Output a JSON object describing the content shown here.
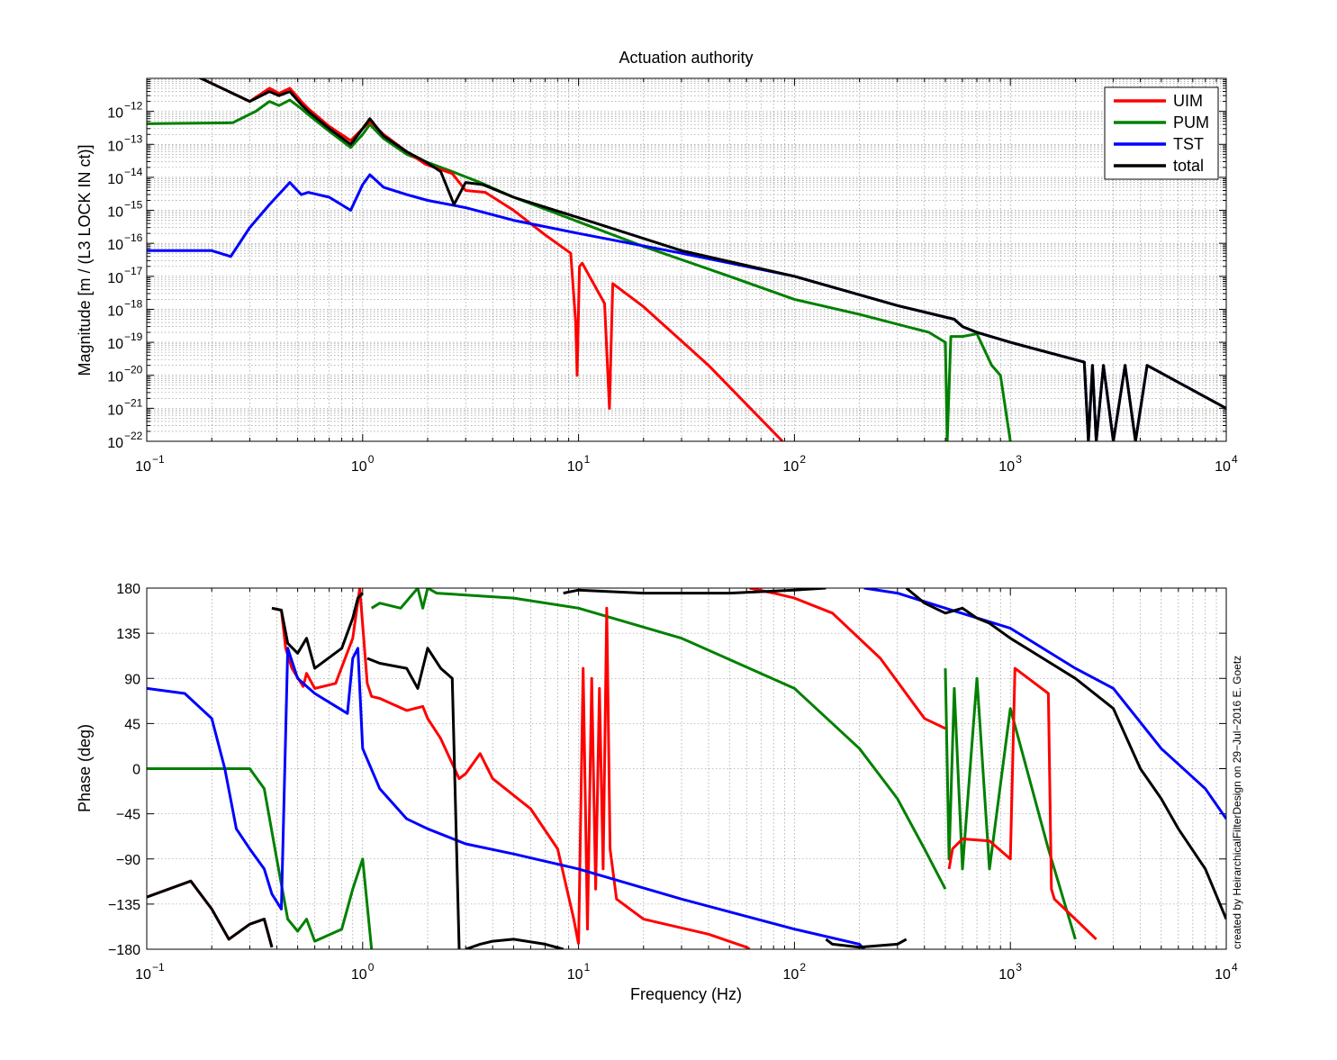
{
  "chart_data": [
    {
      "type": "line",
      "title": "Actuation authority",
      "xlabel": "",
      "ylabel": "Magnitude [m / (L3 LOCK IN ct)]",
      "xscale": "log",
      "yscale": "log",
      "xlim": [
        0.1,
        10000
      ],
      "ylim": [
        1e-22,
        1e-11
      ],
      "grid": "on (major and minor, dotted)",
      "legend_position": "top-right",
      "xtick_labels": [
        {
          "base": "10",
          "exp": "−1",
          "value": 0.1
        },
        {
          "base": "10",
          "exp": "0",
          "value": 1
        },
        {
          "base": "10",
          "exp": "1",
          "value": 10
        },
        {
          "base": "10",
          "exp": "2",
          "value": 100
        },
        {
          "base": "10",
          "exp": "3",
          "value": 1000
        },
        {
          "base": "10",
          "exp": "4",
          "value": 10000
        }
      ],
      "ytick_labels": [
        {
          "base": "10",
          "exp": "−12",
          "value": -12
        },
        {
          "base": "10",
          "exp": "−13",
          "value": -13
        },
        {
          "base": "10",
          "exp": "−14",
          "value": -14
        },
        {
          "base": "10",
          "exp": "−15",
          "value": -15
        },
        {
          "base": "10",
          "exp": "−16",
          "value": -16
        },
        {
          "base": "10",
          "exp": "−17",
          "value": -17
        },
        {
          "base": "10",
          "exp": "−18",
          "value": -18
        },
        {
          "base": "10",
          "exp": "−19",
          "value": -19
        },
        {
          "base": "10",
          "exp": "−20",
          "value": -20
        },
        {
          "base": "10",
          "exp": "−21",
          "value": -21
        },
        {
          "base": "10",
          "exp": "−22",
          "value": -22
        }
      ],
      "series": [
        {
          "name": "UIM",
          "color": "#ff0000",
          "x": [
            0.1,
            0.3,
            0.37,
            0.41,
            0.46,
            0.52,
            0.56,
            0.7,
            0.88,
            1.0,
            1.08,
            1.25,
            1.6,
            1.95,
            2.6,
            3.0,
            3.7,
            5,
            7,
            9.2,
            9.7,
            9.85,
            10.1,
            10.4,
            13.2,
            13.9,
            14.4,
            20,
            40,
            88
          ],
          "y": [
            6e-11,
            2e-12,
            5e-12,
            3.5e-12,
            5e-12,
            2e-12,
            1.2e-12,
            3.5e-13,
            1.3e-13,
            3e-13,
            5e-13,
            2e-13,
            6e-14,
            2.5e-14,
            1.3e-14,
            4e-15,
            3.5e-15,
            1e-15,
            1.8e-16,
            5e-17,
            4e-19,
            1e-20,
            2e-17,
            2.5e-17,
            1.5e-18,
            1e-21,
            6e-18,
            1.2e-18,
            2e-20,
            1e-22
          ]
        },
        {
          "name": "PUM",
          "color": "#008000",
          "x": [
            0.1,
            0.25,
            0.32,
            0.37,
            0.41,
            0.46,
            0.52,
            0.56,
            0.7,
            0.88,
            1.0,
            1.08,
            1.25,
            1.6,
            1.95,
            2.6,
            3.5,
            5,
            10,
            20,
            50,
            100,
            200,
            420,
            500,
            510,
            530,
            560,
            600,
            700,
            820,
            900,
            1000
          ],
          "y": [
            4.2e-13,
            4.5e-13,
            1e-12,
            2e-12,
            1.5e-12,
            2.2e-12,
            1.2e-12,
            8e-13,
            2.5e-13,
            8e-14,
            2e-13,
            4e-13,
            1.5e-13,
            5e-14,
            3e-14,
            1.5e-14,
            7e-15,
            2.5e-15,
            4.5e-16,
            8e-17,
            1e-17,
            2e-18,
            7e-19,
            2e-19,
            1e-19,
            1e-22,
            1.5e-19,
            1.5e-19,
            1.5e-19,
            1.8e-19,
            2e-20,
            1e-20,
            1e-22
          ]
        },
        {
          "name": "TST",
          "color": "#0000ff",
          "x": [
            0.1,
            0.2,
            0.245,
            0.3,
            0.37,
            0.46,
            0.52,
            0.56,
            0.7,
            0.88,
            1.0,
            1.08,
            1.25,
            1.6,
            2,
            3,
            5,
            10,
            30,
            100,
            300,
            550,
            600,
            700,
            1000,
            2200,
            2300,
            2400,
            2500,
            2700,
            3000,
            3400,
            3800,
            4300,
            10000
          ],
          "y": [
            6e-17,
            6e-17,
            4e-17,
            3e-16,
            1.5e-15,
            7e-15,
            3e-15,
            3.5e-15,
            2.5e-15,
            1e-15,
            6e-15,
            1.2e-14,
            5e-15,
            3e-15,
            2e-15,
            1.2e-15,
            5e-16,
            2e-16,
            5e-17,
            1e-17,
            1.3e-18,
            5e-19,
            3e-19,
            2e-19,
            1e-19,
            2.5e-20,
            1e-22,
            2e-20,
            1e-22,
            2e-20,
            1e-22,
            2e-20,
            1e-22,
            2e-20,
            1e-21
          ]
        },
        {
          "name": "total",
          "color": "#000000",
          "x": [
            0.1,
            0.3,
            0.37,
            0.41,
            0.46,
            0.52,
            0.56,
            0.7,
            0.88,
            1.0,
            1.08,
            1.25,
            1.6,
            1.95,
            2.3,
            2.65,
            3.0,
            3.6,
            5,
            10,
            30,
            100,
            300,
            550,
            600,
            700,
            1000,
            2200,
            2300,
            2400,
            2500,
            2700,
            3000,
            3400,
            3800,
            4300,
            10000
          ],
          "y": [
            6e-11,
            2e-12,
            4e-12,
            3e-12,
            4e-12,
            1.6e-12,
            1e-12,
            3e-13,
            1e-13,
            3e-13,
            6e-13,
            1.8e-13,
            6e-14,
            3e-14,
            1.5e-14,
            1.5e-15,
            7e-15,
            6e-15,
            2.5e-15,
            6e-16,
            6e-17,
            1e-17,
            1.3e-18,
            5e-19,
            3e-19,
            2e-19,
            1e-19,
            2.5e-20,
            1e-22,
            2e-20,
            1e-22,
            2e-20,
            1e-22,
            2e-20,
            1e-22,
            2e-20,
            1e-21
          ]
        }
      ]
    },
    {
      "type": "line",
      "title": "",
      "xlabel": "Frequency (Hz)",
      "ylabel": "Phase (deg)",
      "xscale": "log",
      "xlim": [
        0.1,
        10000
      ],
      "ylim": [
        -180,
        180
      ],
      "grid": "on (major and minor, dotted)",
      "xtick_labels": [
        {
          "base": "10",
          "exp": "−1",
          "value": 0.1
        },
        {
          "base": "10",
          "exp": "0",
          "value": 1
        },
        {
          "base": "10",
          "exp": "1",
          "value": 10
        },
        {
          "base": "10",
          "exp": "2",
          "value": 100
        },
        {
          "base": "10",
          "exp": "3",
          "value": 1000
        },
        {
          "base": "10",
          "exp": "4",
          "value": 10000
        }
      ],
      "ytick_labels": [
        "180",
        "135",
        "90",
        "45",
        "0",
        "−45",
        "−90",
        "−135",
        "−180"
      ],
      "ytick_values": [
        180,
        135,
        90,
        45,
        0,
        -45,
        -90,
        -135,
        -180
      ],
      "series": [
        {
          "name": "UIM",
          "color": "#ff0000",
          "lines": [
            {
              "x": [
                0.1,
                0.16,
                0.2,
                0.24,
                0.3,
                0.35,
                0.38
              ],
              "y": [
                -128,
                -112,
                -140,
                -170,
                -155,
                -150,
                -178
              ]
            },
            {
              "x": [
                0.38,
                0.42,
                0.44,
                0.47,
                0.53,
                0.55,
                0.6,
                0.75,
                0.9,
                0.97
              ],
              "y": [
                160,
                158,
                120,
                100,
                82,
                95,
                80,
                85,
                130,
                180
              ]
            },
            {
              "x": [
                0.97,
                1.05,
                1.1,
                1.2,
                1.6,
                1.9,
                2.0,
                2.3,
                2.8,
                3.0,
                3.5,
                4,
                6,
                8,
                9.5,
                10
              ],
              "y": [
                180,
                85,
                72,
                70,
                58,
                62,
                50,
                30,
                -10,
                -5,
                15,
                -10,
                -40,
                -80,
                -150,
                -175
              ]
            },
            {
              "x": [
                10,
                10.5,
                11,
                11.5,
                12,
                12.5,
                13,
                13.5,
                14,
                15,
                20,
                40,
                60,
                62
              ],
              "y": [
                -175,
                100,
                -160,
                90,
                -120,
                80,
                -100,
                160,
                -80,
                -130,
                -150,
                -165,
                -178,
                -180
              ]
            },
            {
              "x": [
                62,
                80,
                100,
                150,
                250,
                400,
                500
              ],
              "y": [
                180,
                175,
                170,
                155,
                110,
                50,
                40
              ]
            },
            {
              "x": [
                520,
                540,
                600,
                800,
                1000,
                1050,
                1500,
                1550,
                1600,
                2000,
                2500
              ],
              "y": [
                -100,
                -80,
                -70,
                -72,
                -90,
                100,
                75,
                -120,
                -130,
                -150,
                -170
              ]
            }
          ]
        },
        {
          "name": "PUM",
          "color": "#008000",
          "lines": [
            {
              "x": [
                0.1,
                0.2,
                0.3,
                0.35,
                0.4,
                0.45,
                0.5,
                0.55,
                0.6,
                0.8,
                0.9,
                1.0,
                1.1
              ],
              "y": [
                0,
                0,
                0,
                -20,
                -90,
                -150,
                -162,
                -150,
                -172,
                -160,
                -120,
                -90,
                -180
              ]
            },
            {
              "x": [
                1.1,
                1.2,
                1.5,
                1.8,
                1.9,
                2.0,
                2.2,
                5,
                10,
                30,
                100,
                200,
                300,
                400,
                500
              ],
              "y": [
                160,
                165,
                160,
                180,
                160,
                180,
                175,
                170,
                160,
                130,
                80,
                20,
                -30,
                -80,
                -120
              ]
            },
            {
              "x": [
                500,
                520,
                550,
                600,
                700,
                800,
                1000,
                1500,
                2000
              ],
              "y": [
                100,
                -90,
                80,
                -100,
                90,
                -100,
                60,
                -80,
                -170
              ]
            }
          ]
        },
        {
          "name": "TST",
          "color": "#0000ff",
          "lines": [
            {
              "x": [
                0.1,
                0.15,
                0.2,
                0.23,
                0.26,
                0.3,
                0.35,
                0.38,
                0.42,
                0.45,
                0.5,
                0.6,
                0.85,
                0.9,
                0.95,
                1.0,
                1.2,
                1.6,
                2,
                3,
                5,
                10,
                30,
                100,
                200,
                210
              ],
              "y": [
                80,
                75,
                50,
                0,
                -60,
                -80,
                -100,
                -125,
                -140,
                120,
                90,
                75,
                55,
                110,
                120,
                20,
                -20,
                -50,
                -60,
                -75,
                -85,
                -100,
                -130,
                -160,
                -175,
                -180
              ]
            },
            {
              "x": [
                210,
                300,
                500,
                1000,
                2000,
                3000,
                5000,
                8000,
                10000
              ],
              "y": [
                180,
                175,
                160,
                140,
                100,
                80,
                20,
                -20,
                -50
              ]
            }
          ]
        },
        {
          "name": "total",
          "color": "#000000",
          "lines": [
            {
              "x": [
                0.1,
                0.16,
                0.2,
                0.24,
                0.3,
                0.35,
                0.38
              ],
              "y": [
                -128,
                -112,
                -140,
                -170,
                -155,
                -150,
                -178
              ]
            },
            {
              "x": [
                0.38,
                0.42,
                0.45,
                0.5,
                0.55,
                0.6,
                0.8,
                0.9,
                0.95,
                1.0
              ],
              "y": [
                160,
                158,
                125,
                115,
                130,
                100,
                120,
                150,
                170,
                175
              ]
            },
            {
              "x": [
                1.05,
                1.2,
                1.6,
                1.8,
                2.0,
                2.3,
                2.6,
                2.8
              ],
              "y": [
                110,
                105,
                100,
                80,
                120,
                100,
                90,
                -180
              ]
            },
            {
              "x": [
                3.0,
                3.5,
                4.0,
                5,
                7,
                8.5
              ],
              "y": [
                -180,
                -175,
                -172,
                -170,
                -175,
                -180
              ]
            },
            {
              "x": [
                8.5,
                10,
                20,
                50,
                100,
                140
              ],
              "y": [
                175,
                178,
                175,
                175,
                178,
                180
              ]
            },
            {
              "x": [
                140,
                150,
                200,
                300,
                330
              ],
              "y": [
                -170,
                -175,
                -178,
                -175,
                -170
              ]
            },
            {
              "x": [
                330,
                400,
                500,
                600,
                700,
                800,
                1000,
                2000,
                3000,
                4000,
                5000,
                6000,
                8000,
                10000
              ],
              "y": [
                180,
                165,
                155,
                160,
                150,
                145,
                130,
                90,
                60,
                0,
                -30,
                -60,
                -100,
                -150
              ]
            }
          ]
        }
      ]
    }
  ],
  "credit": "created by HeirarchicalFilterDesign on 29−Jul−2016  E. Goetz"
}
